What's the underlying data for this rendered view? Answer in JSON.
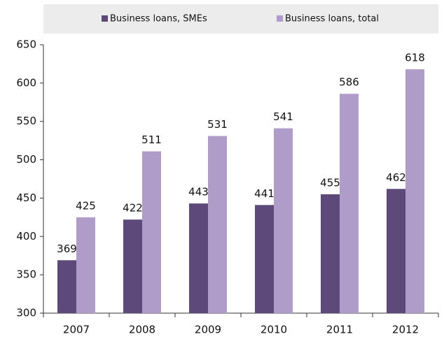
{
  "chart_data": {
    "type": "bar",
    "categories": [
      "2007",
      "2008",
      "2009",
      "2010",
      "2011",
      "2012"
    ],
    "series": [
      {
        "name": "Business loans, SMEs",
        "color": "#5e4a7a",
        "values": [
          369,
          422,
          443,
          441,
          455,
          462
        ]
      },
      {
        "name": "Business loans, total",
        "color": "#b09cc8",
        "values": [
          425,
          511,
          531,
          541,
          586,
          618
        ]
      }
    ],
    "ylim": [
      300,
      650
    ],
    "yticks": [
      300,
      350,
      400,
      450,
      500,
      550,
      600,
      650
    ],
    "legend": "top"
  }
}
